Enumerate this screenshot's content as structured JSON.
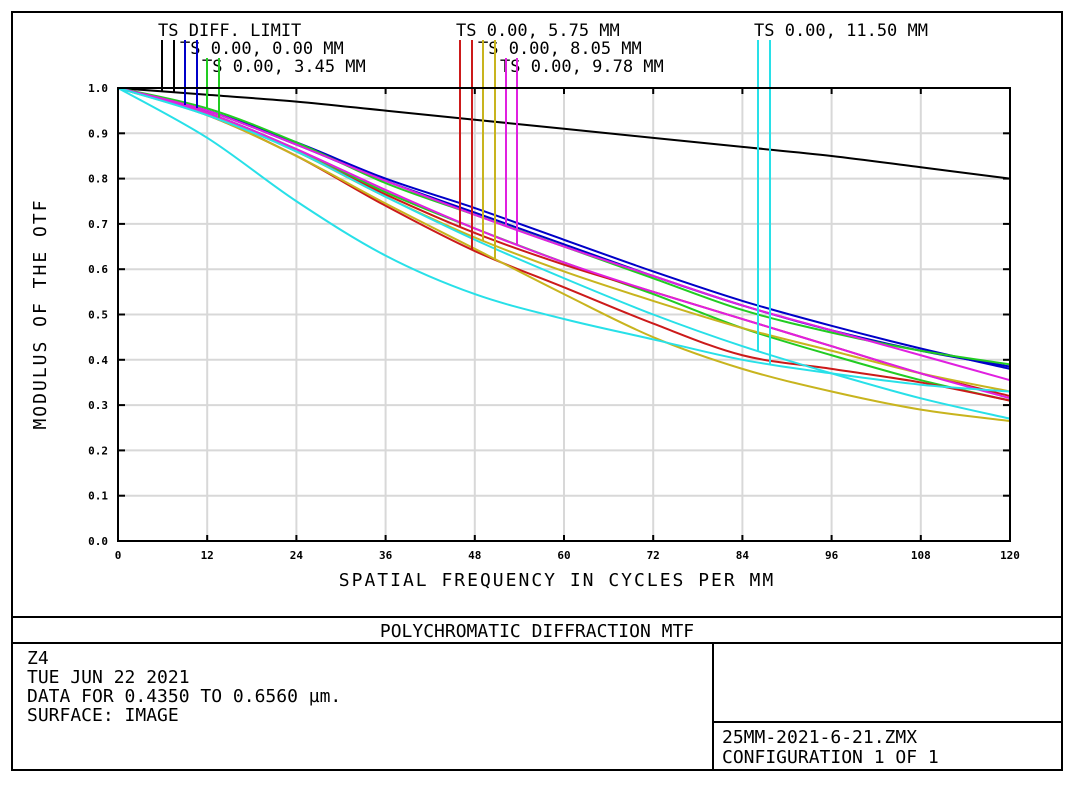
{
  "chart_data": {
    "type": "line",
    "title": "POLYCHROMATIC DIFFRACTION MTF",
    "xlabel": "SPATIAL FREQUENCY IN CYCLES PER MM",
    "ylabel": "MODULUS OF THE OTF",
    "xlim": [
      0,
      120
    ],
    "ylim": [
      0,
      1
    ],
    "grid": true,
    "x_ticks": [
      "0",
      "12",
      "24",
      "36",
      "48",
      "60",
      "72",
      "84",
      "96",
      "108",
      "120"
    ],
    "y_ticks": [
      "0.0",
      "0.1",
      "0.2",
      "0.3",
      "0.4",
      "0.5",
      "0.6",
      "0.7",
      "0.8",
      "0.9",
      "1.0"
    ],
    "x": [
      0,
      12,
      24,
      36,
      48,
      60,
      72,
      84,
      96,
      108,
      120
    ],
    "legend": [
      {
        "label": "TS DIFF. LIMIT",
        "color": "#000000"
      },
      {
        "label": "TS 0.00, 0.00 MM",
        "color": "#0000c8"
      },
      {
        "label": "TS 0.00, 3.45 MM",
        "color": "#22cc22"
      },
      {
        "label": "TS 0.00, 5.75 MM",
        "color": "#cc1a1a"
      },
      {
        "label": "TS 0.00, 8.05 MM",
        "color": "#c8b41e"
      },
      {
        "label": "TS 0.00, 9.78 MM",
        "color": "#e020e0"
      },
      {
        "label": "TS 0.00, 11.50 MM",
        "color": "#28e0e8"
      }
    ],
    "series": [
      {
        "name": "DIFF. LIMIT T",
        "color": "#000000",
        "values": [
          1,
          0.985,
          0.97,
          0.95,
          0.93,
          0.91,
          0.89,
          0.87,
          0.85,
          0.825,
          0.8
        ]
      },
      {
        "name": "0.00 MM T",
        "color": "#0000c8",
        "values": [
          1,
          0.95,
          0.88,
          0.8,
          0.735,
          0.665,
          0.595,
          0.53,
          0.475,
          0.425,
          0.38
        ]
      },
      {
        "name": "0.00 MM S",
        "color": "#0000c8",
        "values": [
          1,
          0.95,
          0.875,
          0.795,
          0.725,
          0.655,
          0.585,
          0.52,
          0.465,
          0.42,
          0.385
        ]
      },
      {
        "name": "3.45 MM T",
        "color": "#22cc22",
        "values": [
          1,
          0.955,
          0.88,
          0.79,
          0.72,
          0.65,
          0.58,
          0.51,
          0.46,
          0.42,
          0.39
        ]
      },
      {
        "name": "3.45 MM S",
        "color": "#22cc22",
        "values": [
          1,
          0.945,
          0.865,
          0.77,
          0.69,
          0.615,
          0.545,
          0.47,
          0.41,
          0.355,
          0.31
        ]
      },
      {
        "name": "5.75 MM T",
        "color": "#cc1a1a",
        "values": [
          1,
          0.945,
          0.86,
          0.765,
          0.68,
          0.61,
          0.55,
          0.49,
          0.43,
          0.37,
          0.32
        ]
      },
      {
        "name": "5.75 MM S",
        "color": "#cc1a1a",
        "values": [
          1,
          0.94,
          0.85,
          0.74,
          0.64,
          0.56,
          0.48,
          0.41,
          0.38,
          0.35,
          0.31
        ]
      },
      {
        "name": "8.05 MM T",
        "color": "#c8b41e",
        "values": [
          1,
          0.945,
          0.86,
          0.76,
          0.67,
          0.595,
          0.53,
          0.47,
          0.42,
          0.37,
          0.33
        ]
      },
      {
        "name": "8.05 MM S",
        "color": "#c8b41e",
        "values": [
          1,
          0.94,
          0.85,
          0.745,
          0.645,
          0.545,
          0.45,
          0.38,
          0.33,
          0.29,
          0.265
        ]
      },
      {
        "name": "9.78 MM T",
        "color": "#e020e0",
        "values": [
          1,
          0.95,
          0.875,
          0.795,
          0.72,
          0.65,
          0.585,
          0.52,
          0.465,
          0.41,
          0.355
        ]
      },
      {
        "name": "9.78 MM S",
        "color": "#e020e0",
        "values": [
          1,
          0.945,
          0.865,
          0.775,
          0.69,
          0.615,
          0.55,
          0.49,
          0.43,
          0.37,
          0.315
        ]
      },
      {
        "name": "11.50 MM T",
        "color": "#28e0e8",
        "values": [
          1,
          0.94,
          0.86,
          0.76,
          0.665,
          0.58,
          0.5,
          0.43,
          0.37,
          0.315,
          0.27
        ]
      },
      {
        "name": "11.50 MM S",
        "color": "#28e0e8",
        "values": [
          1,
          0.89,
          0.75,
          0.63,
          0.545,
          0.49,
          0.445,
          0.4,
          0.37,
          0.345,
          0.33
        ]
      }
    ]
  },
  "info": {
    "lens": "Z4",
    "date": "TUE JUN 22 2021",
    "wavelength": "DATA FOR 0.4350 TO 0.6560 µm.",
    "surface": "SURFACE: IMAGE",
    "file": "25MM-2021-6-21.ZMX",
    "configuration": "CONFIGURATION 1 OF 1"
  }
}
